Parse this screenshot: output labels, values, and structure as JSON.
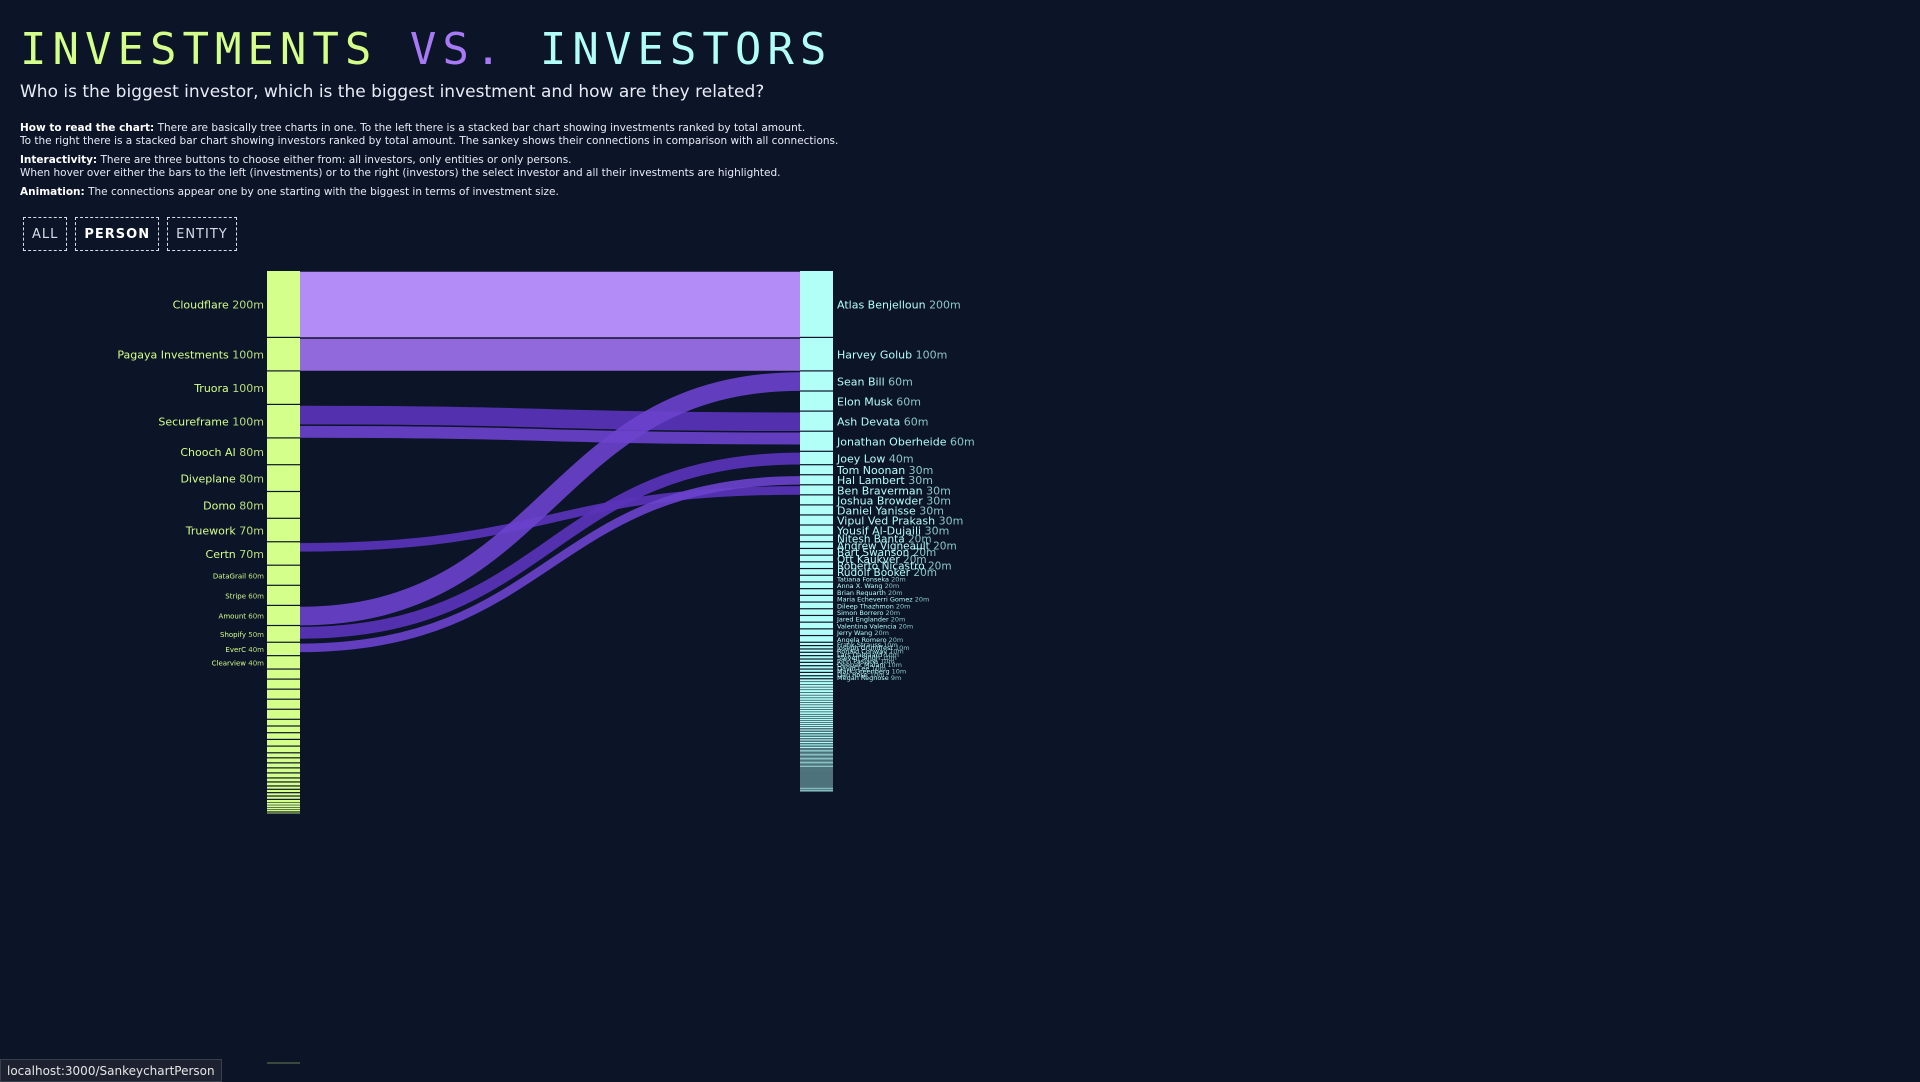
{
  "page": {
    "title_part1": "INVESTMENTS",
    "title_part2": "VS.",
    "title_part3": "INVESTORS",
    "subtitle": "Who is the biggest investor, which is the biggest investment and how are they related?",
    "howto_label": "How to read the chart:",
    "howto_text": "There are basically tree charts in one. To the left there is a stacked bar chart showing investments ranked by total amount.",
    "howto_text2": "To the right there is a stacked bar chart showing investors ranked by total amount. The sankey shows their connections in comparison with all connections.",
    "interactivity_label": "Interactivity:",
    "interactivity_text": "There are three buttons to choose either from: all investors, only entities or only persons.",
    "interactivity_text2": "When hover over either the bars to the left (investments) or to the right (investors) the select investor and all their investments are highlighted.",
    "animation_label": "Animation:",
    "animation_text": "The connections appear one by one starting with the biggest in terms of investment size."
  },
  "buttons": {
    "all": "ALL",
    "person": "PERSON",
    "entity": "ENTITY",
    "active": "person"
  },
  "status_bar": {
    "url": "localhost:3000/SankeychartPerson"
  },
  "colors": {
    "background": "#0c1428",
    "investment_bar": "#d4ff8a",
    "investor_bar": "#b2fff8",
    "flow_top": "#b38cf8",
    "flow_second": "#9169dc",
    "flow": "#6a42cc",
    "flow_dark": "#5a33b8"
  },
  "chart_data": {
    "type": "sankey",
    "unit": "m",
    "investments": [
      {
        "name": "Cloudflare",
        "label": "200m",
        "value": 200
      },
      {
        "name": "Pagaya Investments",
        "label": "100m",
        "value": 100
      },
      {
        "name": "Truora",
        "label": "100m",
        "value": 100
      },
      {
        "name": "Secureframe",
        "label": "100m",
        "value": 100
      },
      {
        "name": "Chooch AI",
        "label": "80m",
        "value": 80
      },
      {
        "name": "Diveplane",
        "label": "80m",
        "value": 80
      },
      {
        "name": "Domo",
        "label": "80m",
        "value": 80
      },
      {
        "name": "Truework",
        "label": "70m",
        "value": 70
      },
      {
        "name": "Certn",
        "label": "70m",
        "value": 70
      },
      {
        "name": "DataGrail",
        "label": "60m",
        "value": 60
      },
      {
        "name": "Stripe",
        "label": "60m",
        "value": 60
      },
      {
        "name": "Amount",
        "label": "60m",
        "value": 60
      },
      {
        "name": "Shopify",
        "label": "50m",
        "value": 50
      },
      {
        "name": "EverC",
        "label": "40m",
        "value": 40
      },
      {
        "name": "Clearview",
        "label": "40m",
        "value": 40
      }
    ],
    "investments_unlabeled_values": [
      30,
      30,
      30,
      30,
      30,
      20,
      20,
      20,
      20,
      20,
      15,
      15,
      15,
      15,
      15,
      12,
      12,
      10,
      10,
      10,
      10,
      8,
      8,
      8,
      6,
      5,
      4,
      3
    ],
    "investors": [
      {
        "name": "Atlas Benjelloun",
        "label": "200m",
        "value": 200
      },
      {
        "name": "Harvey Golub",
        "label": "100m",
        "value": 100
      },
      {
        "name": "Sean Bill",
        "label": "60m",
        "value": 60
      },
      {
        "name": "Elon Musk",
        "label": "60m",
        "value": 60
      },
      {
        "name": "Ash Devata",
        "label": "60m",
        "value": 60
      },
      {
        "name": "Jonathan Oberheide",
        "label": "60m",
        "value": 60
      },
      {
        "name": "Joey Low",
        "label": "40m",
        "value": 40
      },
      {
        "name": "Tom Noonan",
        "label": "30m",
        "value": 30
      },
      {
        "name": "Hal Lambert",
        "label": "30m",
        "value": 30
      },
      {
        "name": "Ben Braverman",
        "label": "30m",
        "value": 30
      },
      {
        "name": "Joshua Browder",
        "label": "30m",
        "value": 30
      },
      {
        "name": "Daniel Yanisse",
        "label": "30m",
        "value": 30
      },
      {
        "name": "Vipul Ved Prakash",
        "label": "30m",
        "value": 30
      },
      {
        "name": "Yousif Al-Dujaili",
        "label": "30m",
        "value": 30
      },
      {
        "name": "Nitesh Banta",
        "label": "20m",
        "value": 20
      },
      {
        "name": "Andrew Vigneault",
        "label": "20m",
        "value": 20
      },
      {
        "name": "Bart Swanson",
        "label": "20m",
        "value": 20
      },
      {
        "name": "Ott Kaukver",
        "label": "20m",
        "value": 20
      },
      {
        "name": "Roberto Nicastro",
        "label": "20m",
        "value": 20
      },
      {
        "name": "Rudolf Booker",
        "label": "20m",
        "value": 20
      },
      {
        "name": "Tatiana Fonseka",
        "label": "20m",
        "value": 20
      },
      {
        "name": "Anna X. Wang",
        "label": "20m",
        "value": 20
      },
      {
        "name": "Brian Requarth",
        "label": "20m",
        "value": 20
      },
      {
        "name": "Maria Echeverri Gomez",
        "label": "20m",
        "value": 20
      },
      {
        "name": "Dileep Thazhmon",
        "label": "20m",
        "value": 20
      },
      {
        "name": "Simon Borrero",
        "label": "20m",
        "value": 20
      },
      {
        "name": "Jared Englander",
        "label": "20m",
        "value": 20
      },
      {
        "name": "Valentina Valencia",
        "label": "20m",
        "value": 20
      },
      {
        "name": "Jerry Wang",
        "label": "20m",
        "value": 20
      },
      {
        "name": "Angela Romero",
        "label": "20m",
        "value": 20
      },
      {
        "name": "Frank Strauss",
        "label": "10m",
        "value": 10
      },
      {
        "name": "Joseph Grundfest",
        "label": "10m",
        "value": 10
      },
      {
        "name": "Ronald Conway",
        "label": "10m",
        "value": 10
      },
      {
        "name": "Lars Dalgaard",
        "label": "10m",
        "value": 10
      },
      {
        "name": "Steven Singh",
        "label": "10m",
        "value": 10
      },
      {
        "name": "John Pasiana",
        "label": "10m",
        "value": 10
      },
      {
        "name": "Deepak Malani",
        "label": "10m",
        "value": 10
      },
      {
        "name": "David Lee",
        "label": "10m",
        "value": 10
      },
      {
        "name": "Mark Greenberg",
        "label": "10m",
        "value": 10
      },
      {
        "name": "Dan Rose",
        "label": "10m",
        "value": 10
      },
      {
        "name": "Megan Regnose",
        "label": "9m",
        "value": 9
      }
    ],
    "investors_unlabeled_values": [
      8,
      8,
      8,
      8,
      8,
      8,
      8,
      7,
      7,
      7,
      7,
      7,
      7,
      7,
      6,
      6,
      6,
      6,
      6,
      6,
      6,
      5,
      5,
      5,
      5,
      5,
      5,
      5,
      5,
      5,
      5,
      5,
      5,
      4,
      4,
      4,
      4,
      4,
      4,
      4,
      4,
      4,
      4,
      4,
      4,
      4,
      4,
      3,
      3,
      3,
      3,
      3,
      3,
      3,
      3,
      3,
      3,
      3,
      3,
      3,
      3,
      3,
      3,
      3,
      3,
      3,
      2,
      2,
      2,
      2,
      2,
      2,
      2,
      2
    ],
    "flows": [
      {
        "source": "Cloudflare",
        "target": "Atlas Benjelloun",
        "value": 200
      },
      {
        "source": "Pagaya Investments",
        "target": "Harvey Golub",
        "value": 100
      },
      {
        "source": "Secureframe",
        "target": "Ash Devata",
        "value": 60
      },
      {
        "source": "Secureframe",
        "target": "Jonathan Oberheide",
        "value": 40
      },
      {
        "source": "Certn",
        "target": "Ben Braverman",
        "value": 30
      },
      {
        "source": "Amount",
        "target": "Sean Bill",
        "value": 60
      },
      {
        "source": "Shopify",
        "target": "Joey Low",
        "value": 40
      },
      {
        "source": "EverC",
        "target": "Hal Lambert",
        "value": 30
      }
    ]
  }
}
